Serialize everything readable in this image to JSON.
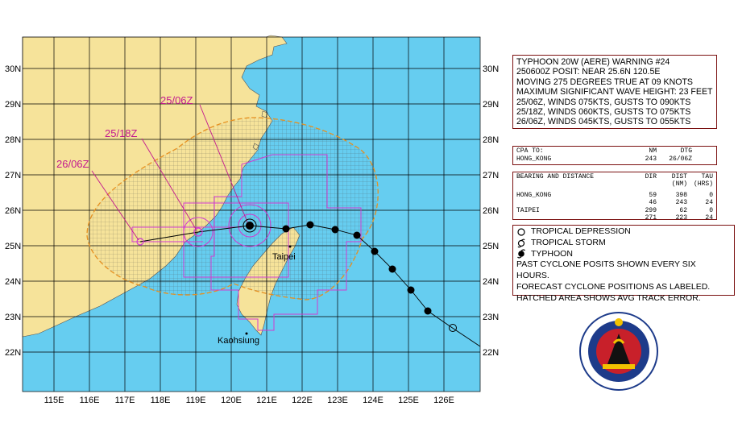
{
  "map": {
    "lat_labels": [
      "30N",
      "29N",
      "28N",
      "27N",
      "26N",
      "25N",
      "24N",
      "23N",
      "22N"
    ],
    "lon_labels": [
      "115E",
      "116E",
      "117E",
      "118E",
      "119E",
      "120E",
      "121E",
      "122E",
      "123E",
      "124E",
      "125E",
      "126E"
    ],
    "cities": {
      "taipei": "Taipei",
      "kaohsiung": "Kaohsiung"
    },
    "forecast_labels": [
      "25/06Z",
      "25/18Z",
      "26/06Z"
    ],
    "colors": {
      "sea": "#66cdf0",
      "land": "#f6e39a",
      "error_cone": "#e69020",
      "track_radii": "#d13ad1",
      "label": "#c2188f"
    }
  },
  "warning": {
    "lines": [
      "TYPHOON 20W (AERE) WARNING #24",
      "250600Z POSIT: NEAR 25.6N 120.5E",
      "MOVING 275 DEGREES TRUE AT 09 KNOTS",
      "MAXIMUM SIGNIFICANT WAVE HEIGHT: 23 FEET",
      "25/06Z, WINDS 075KTS, GUSTS TO 090KTS",
      "25/18Z, WINDS 060KTS, GUSTS TO 075KTS",
      "26/06Z, WINDS 045KTS, GUSTS TO 055KTS"
    ]
  },
  "cpa": {
    "header": [
      "CPA TO:",
      "NM",
      "DTG"
    ],
    "row": [
      "HONG_KONG",
      "243",
      "26/06Z"
    ]
  },
  "bearing": {
    "header": [
      "BEARING AND DISTANCE",
      "DIR",
      "DIST",
      "TAU"
    ],
    "subheader": [
      "",
      "",
      "(NM)",
      "(HRS)"
    ],
    "rows": [
      [
        "HONG_KONG",
        "59",
        "398",
        "0"
      ],
      [
        "",
        "46",
        "243",
        "24"
      ],
      [
        "TAIPEI",
        "299",
        "62",
        "0"
      ],
      [
        "",
        "271",
        "223",
        "24"
      ]
    ]
  },
  "legend": {
    "items": [
      {
        "icon": "tropical-depression-icon",
        "label": "TROPICAL DEPRESSION"
      },
      {
        "icon": "tropical-storm-icon",
        "label": "TROPICAL STORM"
      },
      {
        "icon": "typhoon-icon",
        "label": "TYPHOON"
      }
    ],
    "notes": [
      "PAST CYCLONE POSITS SHOWN EVERY SIX HOURS.",
      "FORECAST CYCLONE POSITIONS AS LABELED.",
      "HATCHED AREA SHOWS AVG TRACK ERROR."
    ]
  }
}
